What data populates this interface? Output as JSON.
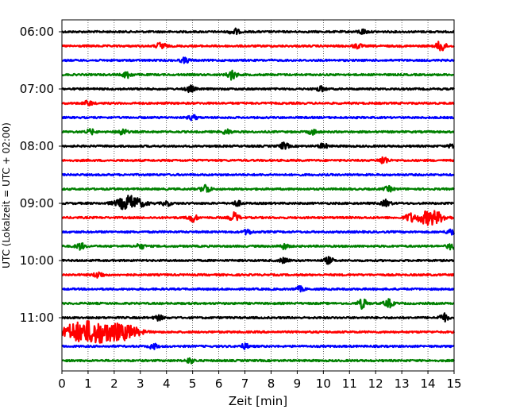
{
  "chart_data": {
    "type": "line",
    "chart_kind": "helicorder seismogram",
    "xlabel": "Zeit  [min]",
    "ylabel": "UTC (Lokalzeit = UTC + 02:00)",
    "xlim": [
      0,
      15
    ],
    "x_ticks": [
      "0",
      "1",
      "2",
      "3",
      "4",
      "5",
      "6",
      "7",
      "8",
      "9",
      "10",
      "11",
      "12",
      "13",
      "14",
      "15"
    ],
    "grid": "vertical dotted lines at each minute",
    "trace_interval_min": 15,
    "line_colors": [
      "#000000",
      "#ff0000",
      "#0000ff",
      "#008000"
    ],
    "y_tick_labels": [
      "06:00",
      "07:00",
      "08:00",
      "09:00",
      "10:00",
      "11:00"
    ],
    "traces": [
      {
        "start": "06:00",
        "color": "#000000",
        "events": [
          [
            6.6,
            4
          ],
          [
            11.5,
            3
          ]
        ]
      },
      {
        "start": "06:15",
        "color": "#ff0000",
        "events": [
          [
            3.8,
            5
          ],
          [
            11.3,
            3
          ],
          [
            14.5,
            7
          ]
        ]
      },
      {
        "start": "06:30",
        "color": "#0000ff",
        "events": [
          [
            4.7,
            3
          ]
        ]
      },
      {
        "start": "06:45",
        "color": "#008000",
        "events": [
          [
            2.5,
            4
          ],
          [
            6.5,
            6
          ]
        ]
      },
      {
        "start": "07:00",
        "color": "#000000",
        "events": [
          [
            4.9,
            4
          ],
          [
            9.9,
            3
          ]
        ]
      },
      {
        "start": "07:15",
        "color": "#ff0000",
        "events": [
          [
            1.0,
            3
          ]
        ]
      },
      {
        "start": "07:30",
        "color": "#0000ff",
        "events": [
          [
            5.0,
            3
          ]
        ]
      },
      {
        "start": "07:45",
        "color": "#008000",
        "events": [
          [
            1.1,
            3
          ],
          [
            2.3,
            4
          ],
          [
            6.3,
            3
          ],
          [
            9.6,
            3
          ]
        ]
      },
      {
        "start": "08:00",
        "color": "#000000",
        "events": [
          [
            8.5,
            4
          ],
          [
            10.0,
            3
          ],
          [
            15.0,
            4
          ]
        ]
      },
      {
        "start": "08:15",
        "color": "#ff0000",
        "events": [
          [
            12.3,
            5
          ]
        ]
      },
      {
        "start": "08:30",
        "color": "#0000ff",
        "events": []
      },
      {
        "start": "08:45",
        "color": "#008000",
        "events": [
          [
            5.5,
            6
          ],
          [
            12.5,
            3
          ]
        ]
      },
      {
        "start": "09:00",
        "color": "#000000",
        "events": [
          [
            2.6,
            9
          ],
          [
            4.0,
            3
          ],
          [
            6.7,
            3
          ],
          [
            12.4,
            4
          ]
        ]
      },
      {
        "start": "09:15",
        "color": "#ff0000",
        "events": [
          [
            5.0,
            5
          ],
          [
            6.6,
            6
          ],
          [
            13.3,
            5
          ],
          [
            14.1,
            9
          ]
        ]
      },
      {
        "start": "09:30",
        "color": "#0000ff",
        "events": [
          [
            7.1,
            3
          ],
          [
            14.9,
            4
          ]
        ]
      },
      {
        "start": "09:45",
        "color": "#008000",
        "events": [
          [
            0.7,
            4
          ],
          [
            3.0,
            3
          ],
          [
            8.5,
            3
          ],
          [
            14.9,
            4
          ]
        ]
      },
      {
        "start": "10:00",
        "color": "#000000",
        "events": [
          [
            8.5,
            3
          ],
          [
            10.2,
            4
          ]
        ]
      },
      {
        "start": "10:15",
        "color": "#ff0000",
        "events": [
          [
            1.4,
            4
          ]
        ]
      },
      {
        "start": "10:30",
        "color": "#0000ff",
        "events": [
          [
            9.1,
            3
          ]
        ]
      },
      {
        "start": "10:45",
        "color": "#008000",
        "events": [
          [
            11.5,
            6
          ],
          [
            12.5,
            5
          ]
        ]
      },
      {
        "start": "11:00",
        "color": "#000000",
        "events": [
          [
            3.7,
            3
          ],
          [
            14.6,
            5
          ]
        ]
      },
      {
        "start": "11:15",
        "color": "#ff0000",
        "events": [
          [
            0.5,
            10
          ],
          [
            1.2,
            11
          ],
          [
            1.8,
            8
          ],
          [
            2.5,
            8
          ]
        ]
      },
      {
        "start": "11:30",
        "color": "#0000ff",
        "events": [
          [
            3.5,
            3
          ],
          [
            7.0,
            3
          ]
        ]
      },
      {
        "start": "11:45",
        "color": "#008000",
        "events": [
          [
            4.9,
            3
          ]
        ]
      }
    ]
  }
}
